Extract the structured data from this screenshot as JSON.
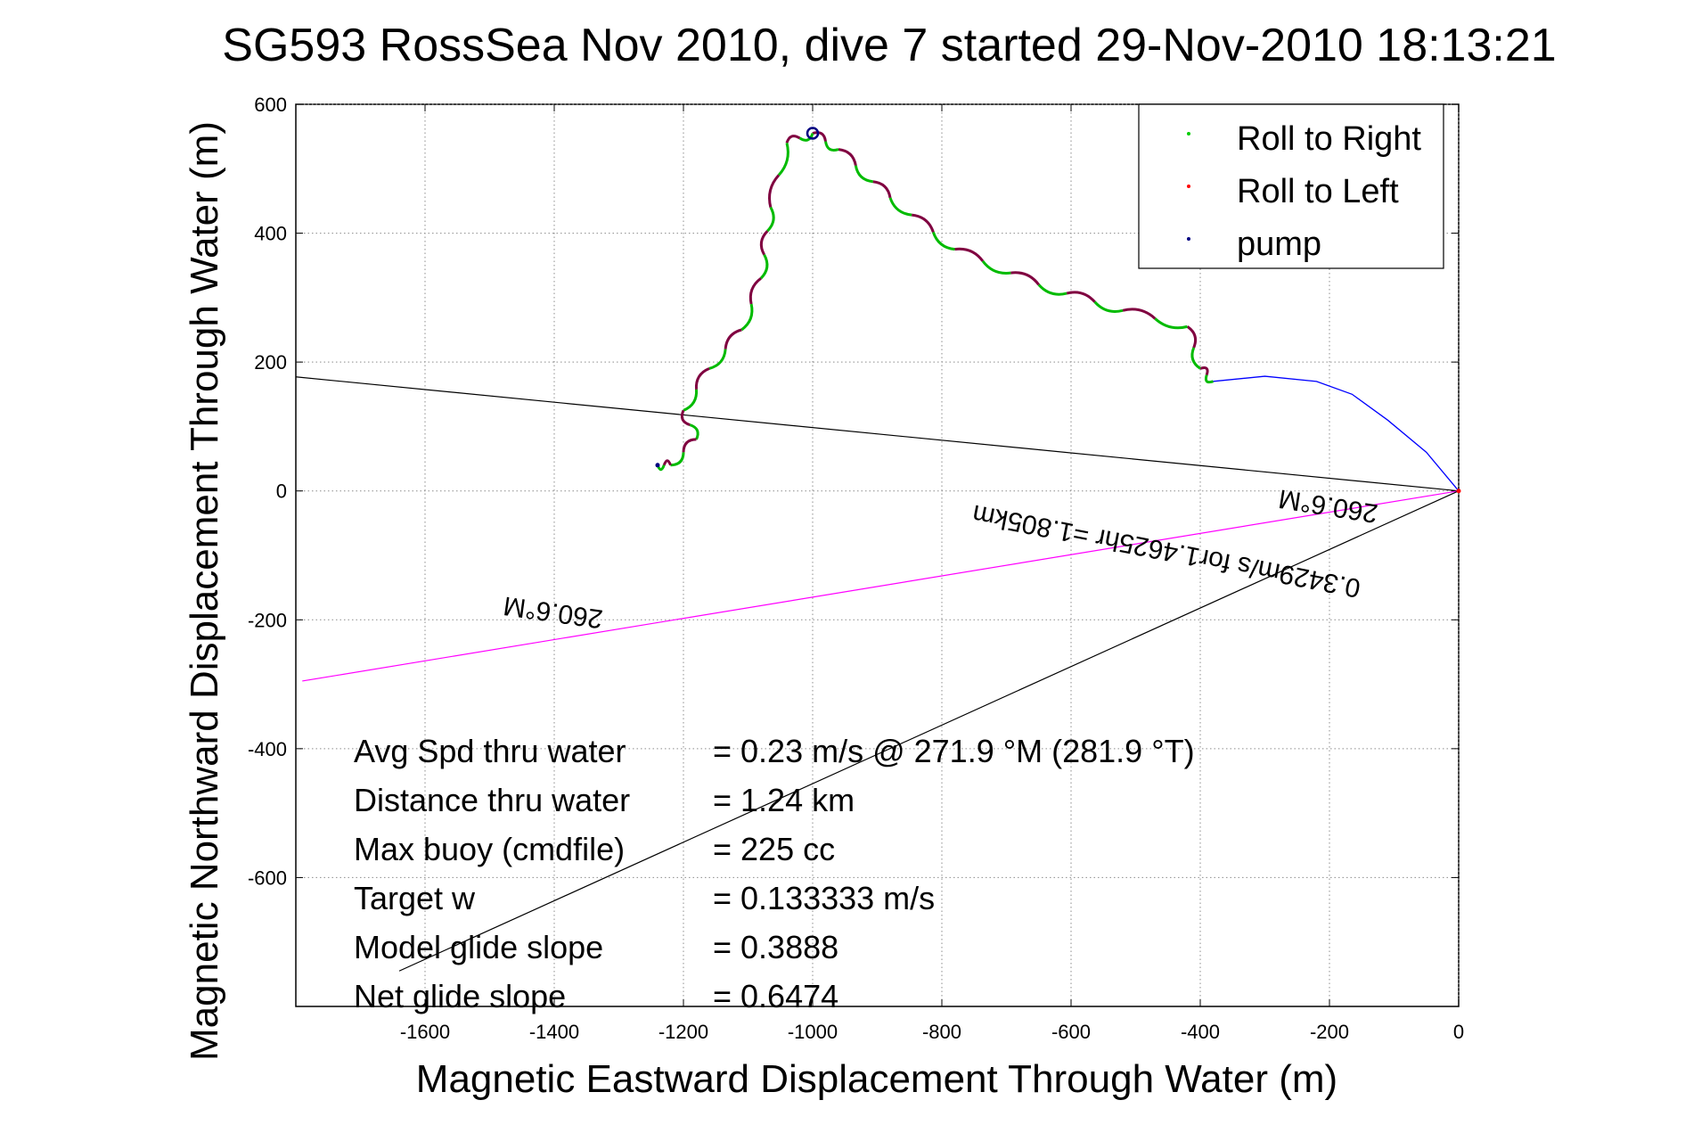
{
  "chart_data": {
    "type": "line",
    "title": "SG593 RossSea Nov 2010, dive 7 started 29-Nov-2010 18:13:21",
    "xlabel": "Magnetic Eastward Displacement Through Water (m)",
    "ylabel": "Magnetic Northward Displacement Through Water (m)",
    "xlim": [
      -1800,
      0
    ],
    "ylim": [
      -800,
      600
    ],
    "grid": true,
    "legend_position": "top-right",
    "x_ticks": [
      -1600,
      -1400,
      -1200,
      -1000,
      -800,
      -600,
      -400,
      -200,
      0
    ],
    "x_tick_labels": [
      "-1600",
      "-1400",
      "-1200",
      "-1000",
      "-800",
      "-600",
      "-400",
      "-200",
      "0"
    ],
    "y_ticks": [
      600,
      400,
      200,
      0,
      -200,
      -400,
      -600
    ],
    "y_tick_labels": [
      "600",
      "400",
      "200",
      "0",
      "-200",
      "-400",
      "-600"
    ],
    "series": [
      {
        "name": "Roll to Right",
        "color": "#00cc00",
        "marker": "dot"
      },
      {
        "name": "Roll to Left",
        "color": "#ff0000",
        "marker": "dot"
      },
      {
        "name": "pump",
        "color": "#000080",
        "marker": "dot"
      }
    ],
    "track_color": "#800040",
    "track_leg_color": "#00bb00",
    "straight_track_color": "#0000ff",
    "track_waypoints": [
      [
        0,
        0
      ],
      [
        -50,
        60
      ],
      [
        -110,
        110
      ],
      [
        -165,
        150
      ],
      [
        -220,
        170
      ],
      [
        -300,
        178
      ],
      [
        -380,
        170
      ],
      [
        -400,
        190
      ],
      [
        -420,
        255
      ],
      [
        -520,
        280
      ],
      [
        -650,
        320
      ],
      [
        -780,
        375
      ],
      [
        -880,
        455
      ],
      [
        -960,
        530
      ],
      [
        -1000,
        555
      ],
      [
        -1040,
        540
      ],
      [
        -1065,
        440
      ],
      [
        -1080,
        330
      ],
      [
        -1110,
        250
      ],
      [
        -1160,
        190
      ],
      [
        -1200,
        125
      ],
      [
        -1180,
        80
      ],
      [
        -1220,
        40
      ],
      [
        -1240,
        40
      ]
    ],
    "lines": [
      {
        "name": "heading-line-black-upper",
        "color": "#000000",
        "from": [
          0,
          0
        ],
        "to": [
          -1800,
          177
        ]
      },
      {
        "name": "heading-line-magenta",
        "color": "#ff00ff",
        "from": [
          0,
          0
        ],
        "to": [
          -1790,
          -295
        ]
      },
      {
        "name": "heading-line-black-lower",
        "color": "#000000",
        "from": [
          0,
          0
        ],
        "to": [
          -1640,
          -745
        ]
      }
    ],
    "annotations": [
      {
        "text": "260.6°M",
        "x": -200,
        "y": -10,
        "angle": 189
      },
      {
        "text": "0.3429m/s for1.4625hr =1.805km",
        "x": -450,
        "y": -80,
        "angle": 191
      },
      {
        "text": "260.6°M",
        "x": -1400,
        "y": -175,
        "angle": 188
      }
    ]
  },
  "stats": [
    {
      "label": "Avg Spd thru water",
      "value": "=  0.23 m/s @ 271.9 °M (281.9 °T)"
    },
    {
      "label": "Distance thru water",
      "value": "=  1.24 km"
    },
    {
      "label": "Max buoy (cmdfile)",
      "value": "= 225 cc"
    },
    {
      "label": "Target w",
      "value": "= 0.133333 m/s"
    },
    {
      "label": "Model glide slope",
      "value": "= 0.3888"
    },
    {
      "label": "Net glide slope",
      "value": "= 0.6474"
    }
  ]
}
